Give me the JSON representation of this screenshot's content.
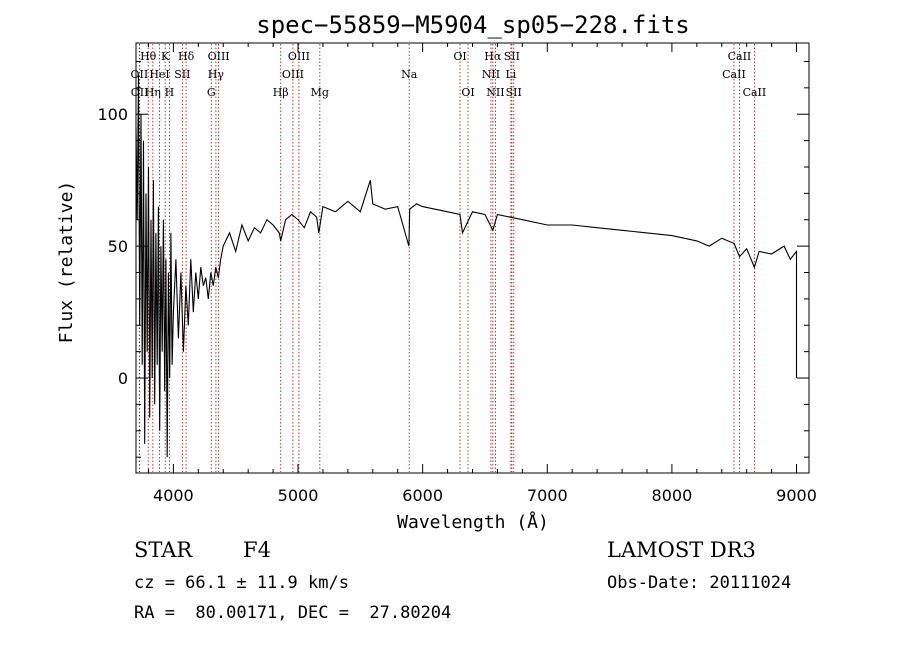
{
  "chart_data": {
    "type": "line",
    "title": "spec−55859−M5904_sp05−228.fits",
    "xlabel": "Wavelength (Å)",
    "ylabel": "Flux (relative)",
    "xlim": [
      3700,
      9100
    ],
    "ylim": [
      -36,
      127
    ],
    "x_ticks": [
      4000,
      5000,
      6000,
      7000,
      8000,
      9000
    ],
    "x_tick_labels": [
      "4000",
      "5000",
      "6000",
      "7000",
      "8000",
      "9000"
    ],
    "y_ticks": [
      0,
      50,
      100
    ],
    "y_tick_labels": [
      "0",
      "50",
      "100"
    ],
    "line_color": "#000000",
    "marker_color": "#b22222",
    "spectrum": {
      "x": [
        3700,
        3710,
        3720,
        3730,
        3740,
        3750,
        3760,
        3770,
        3780,
        3790,
        3800,
        3810,
        3820,
        3830,
        3840,
        3850,
        3860,
        3870,
        3880,
        3890,
        3900,
        3910,
        3920,
        3930,
        3940,
        3950,
        3960,
        3970,
        3980,
        3990,
        4000,
        4020,
        4040,
        4060,
        4080,
        4100,
        4120,
        4140,
        4160,
        4180,
        4200,
        4220,
        4240,
        4260,
        4280,
        4300,
        4320,
        4340,
        4360,
        4380,
        4400,
        4450,
        4500,
        4550,
        4600,
        4650,
        4700,
        4750,
        4800,
        4850,
        4861,
        4900,
        4950,
        5000,
        5050,
        5100,
        5150,
        5167,
        5200,
        5300,
        5400,
        5500,
        5580,
        5600,
        5700,
        5800,
        5890,
        5896,
        5950,
        6000,
        6100,
        6200,
        6300,
        6320,
        6400,
        6500,
        6563,
        6600,
        6700,
        6800,
        7000,
        7200,
        7400,
        7600,
        7800,
        8000,
        8200,
        8300,
        8400,
        8500,
        8542,
        8600,
        8662,
        8700,
        8800,
        8900,
        8950,
        9000,
        9000
      ],
      "y": [
        95,
        60,
        115,
        20,
        100,
        5,
        90,
        -25,
        70,
        10,
        80,
        -15,
        60,
        0,
        75,
        -10,
        55,
        5,
        65,
        -20,
        50,
        10,
        60,
        -5,
        45,
        -30,
        40,
        0,
        55,
        5,
        25,
        45,
        15,
        40,
        10,
        35,
        20,
        45,
        25,
        40,
        30,
        42,
        35,
        38,
        30,
        40,
        35,
        42,
        38,
        45,
        50,
        55,
        48,
        58,
        52,
        57,
        55,
        60,
        58,
        55,
        52,
        60,
        62,
        60,
        57,
        63,
        61,
        55,
        65,
        63,
        67,
        63,
        75,
        66,
        64,
        65,
        50,
        64,
        66,
        65,
        64,
        63,
        62,
        55,
        63,
        62,
        56,
        62,
        61,
        60,
        58,
        58,
        57,
        56,
        55,
        54,
        52,
        50,
        53,
        51,
        46,
        49,
        42,
        48,
        47,
        50,
        45,
        48,
        0
      ],
      "note": "approximate F-type stellar continuum read from the plot"
    },
    "line_markers": [
      {
        "label": "Hθ",
        "wavelength": 3798,
        "row": 0
      },
      {
        "label": "K",
        "wavelength": 3934,
        "row": 0
      },
      {
        "label": "Hδ",
        "wavelength": 4102,
        "row": 0
      },
      {
        "label": "OIII",
        "wavelength": 4363,
        "row": 0
      },
      {
        "label": "OIII",
        "wavelength": 5007,
        "row": 0
      },
      {
        "label": "OI",
        "wavelength": 6300,
        "row": 0
      },
      {
        "label": "Hα",
        "wavelength": 6563,
        "row": 0
      },
      {
        "label": "SII",
        "wavelength": 6716,
        "row": 0
      },
      {
        "label": "CaII",
        "wavelength": 8542,
        "row": 0
      },
      {
        "label": "OII",
        "wavelength": 3727,
        "row": 1
      },
      {
        "label": "HeI",
        "wavelength": 3889,
        "row": 1
      },
      {
        "label": "SII",
        "wavelength": 4072,
        "row": 1
      },
      {
        "label": "Hγ",
        "wavelength": 4341,
        "row": 1
      },
      {
        "label": "OIII",
        "wavelength": 4959,
        "row": 1
      },
      {
        "label": "Na",
        "wavelength": 5892,
        "row": 1
      },
      {
        "label": "NII",
        "wavelength": 6548,
        "row": 1
      },
      {
        "label": "Li",
        "wavelength": 6708,
        "row": 1
      },
      {
        "label": "CaII",
        "wavelength": 8498,
        "row": 1
      },
      {
        "label": "OII",
        "wavelength": 3729,
        "row": 2
      },
      {
        "label": "Hη",
        "wavelength": 3835,
        "row": 2
      },
      {
        "label": "H",
        "wavelength": 3968,
        "row": 2
      },
      {
        "label": "G",
        "wavelength": 4304,
        "row": 2
      },
      {
        "label": "Hβ",
        "wavelength": 4861,
        "row": 2
      },
      {
        "label": "Mg",
        "wavelength": 5175,
        "row": 2
      },
      {
        "label": "OI",
        "wavelength": 6364,
        "row": 2
      },
      {
        "label": "NII",
        "wavelength": 6584,
        "row": 2
      },
      {
        "label": "SII",
        "wavelength": 6731,
        "row": 2
      },
      {
        "label": "CaII",
        "wavelength": 8662,
        "row": 2
      }
    ]
  },
  "info": {
    "class_label": "STAR",
    "subclass_label": "F4",
    "survey_label": "LAMOST DR3",
    "redshift_line": "cz = 66.1 ± 11.9 km/s",
    "obs_date_line": "Obs-Date: 20111024",
    "coords_line": "RA =  80.00171, DEC =  27.80204"
  }
}
